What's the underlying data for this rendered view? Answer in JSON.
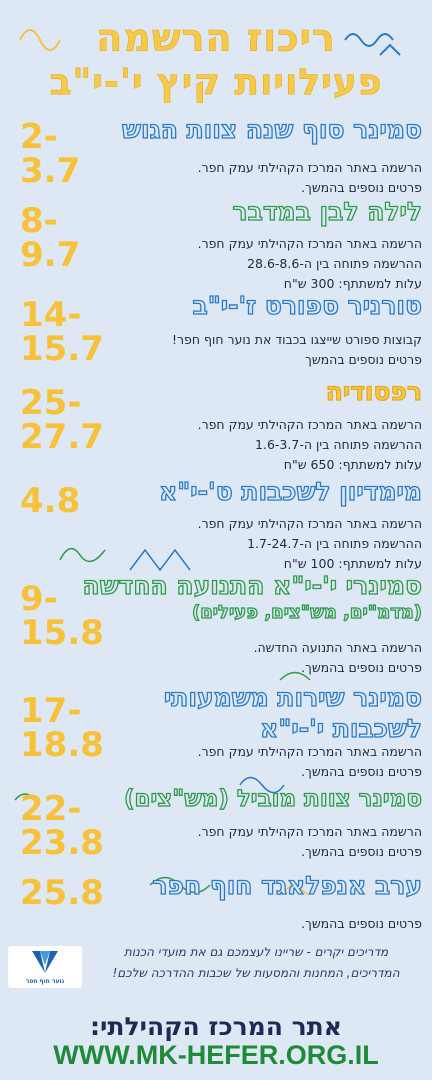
{
  "header": {
    "title_line1": "ריכוז הרשמה",
    "title_line2": "פעילויות קיץ י'-י\"ב"
  },
  "events": [
    {
      "date_lines": [
        "2-",
        "3.7"
      ],
      "title": "סמינר סוף שנה צוות הגוש",
      "title_sub": "",
      "details": [
        "הרשמה באתר המרכז הקהילתי עמק חפר.",
        "פרטים נוספים בהמשך."
      ]
    },
    {
      "date_lines": [
        "8-",
        "9.7"
      ],
      "title": "לילה לבן במדבר",
      "title_sub": "",
      "details": [
        "הרשמה באתר המרכז הקהילתי עמק חפר.",
        "ההרשמה פתוחה בין ה-28.6-8.6",
        "עלות למשתתף: 300 ש\"ח"
      ]
    },
    {
      "date_lines": [
        "14-",
        "15.7"
      ],
      "title": "טורניר ספורט ז'-י\"ב",
      "title_sub": "",
      "details": [
        "קבוצות ספורט שייצגו בכבוד את נוער חוף חפר!",
        "פרטים נוספים בהמשך"
      ]
    },
    {
      "date_lines": [
        "25-",
        "27.7"
      ],
      "title": "רפסודיה",
      "title_sub": "",
      "details": [
        "הרשמה באתר המרכז הקהילתי עמק חפר.",
        "ההרשמה פתוחה בין ה-1.6-3.7",
        "עלות למשתתף: 650 ש\"ח"
      ]
    },
    {
      "date_lines": [
        "4.8"
      ],
      "title": "מימדיון לשכבות ט'-י\"א",
      "title_sub": "",
      "details": [
        "הרשמה באתר המרכז הקהילתי עמק חפר.",
        "ההרשמה פתוחה בין ה-1.7-24.7",
        "עלות למשתתף: 100 ש\"ח"
      ]
    },
    {
      "date_lines": [
        "9-",
        "15.8"
      ],
      "title": "סמינרי י'-י\"א התנועה החדשה",
      "title_sub": "(מדמ\"ים, מש\"צים, פעילים)",
      "details": [
        "הרשמה באתר התנועה החדשה.",
        "פרטים נוספים בהמשך."
      ]
    },
    {
      "date_lines": [
        "17-",
        "18.8"
      ],
      "title": "סמינר שירות משמעותי",
      "title_sub": "לשכבות י'-י\"א",
      "details": [
        "הרשמה באתר המרכז הקהילתי עמק חפר.",
        "פרטים נוספים בהמשך."
      ]
    },
    {
      "date_lines": [
        "22-",
        "23.8"
      ],
      "title": "סמינר צוות מוביל (מש\"צים)",
      "title_sub": "",
      "details": [
        "הרשמה באתר המרכז הקהילתי עמק חפר.",
        "פרטים נוספים בהמשך."
      ]
    },
    {
      "date_lines": [
        "25.8"
      ],
      "title": "ערב אנפלאגד חוף חפר",
      "title_sub": "",
      "details": [
        "פרטים נוספים בהמשך."
      ]
    }
  ],
  "footer": {
    "logo_text": "נוער חוף חפר",
    "note": "מדריכים יקרים - שריינו לעצמכם גם את מועדי הכנות המדריכים, המחנות והמסעות של שכבות ההדרכה שלכם!",
    "site_label": "אתר המרכז הקהילתי:",
    "site_url": "WWW.MK-HEFER.ORG.IL"
  },
  "colors": {
    "background": "#dde8f4",
    "date": "#f7c23a",
    "title_blue": "#2b7bc4",
    "title_green": "#2e9a4a",
    "title_yellow": "#e8a820",
    "url": "#1f8a3a"
  }
}
